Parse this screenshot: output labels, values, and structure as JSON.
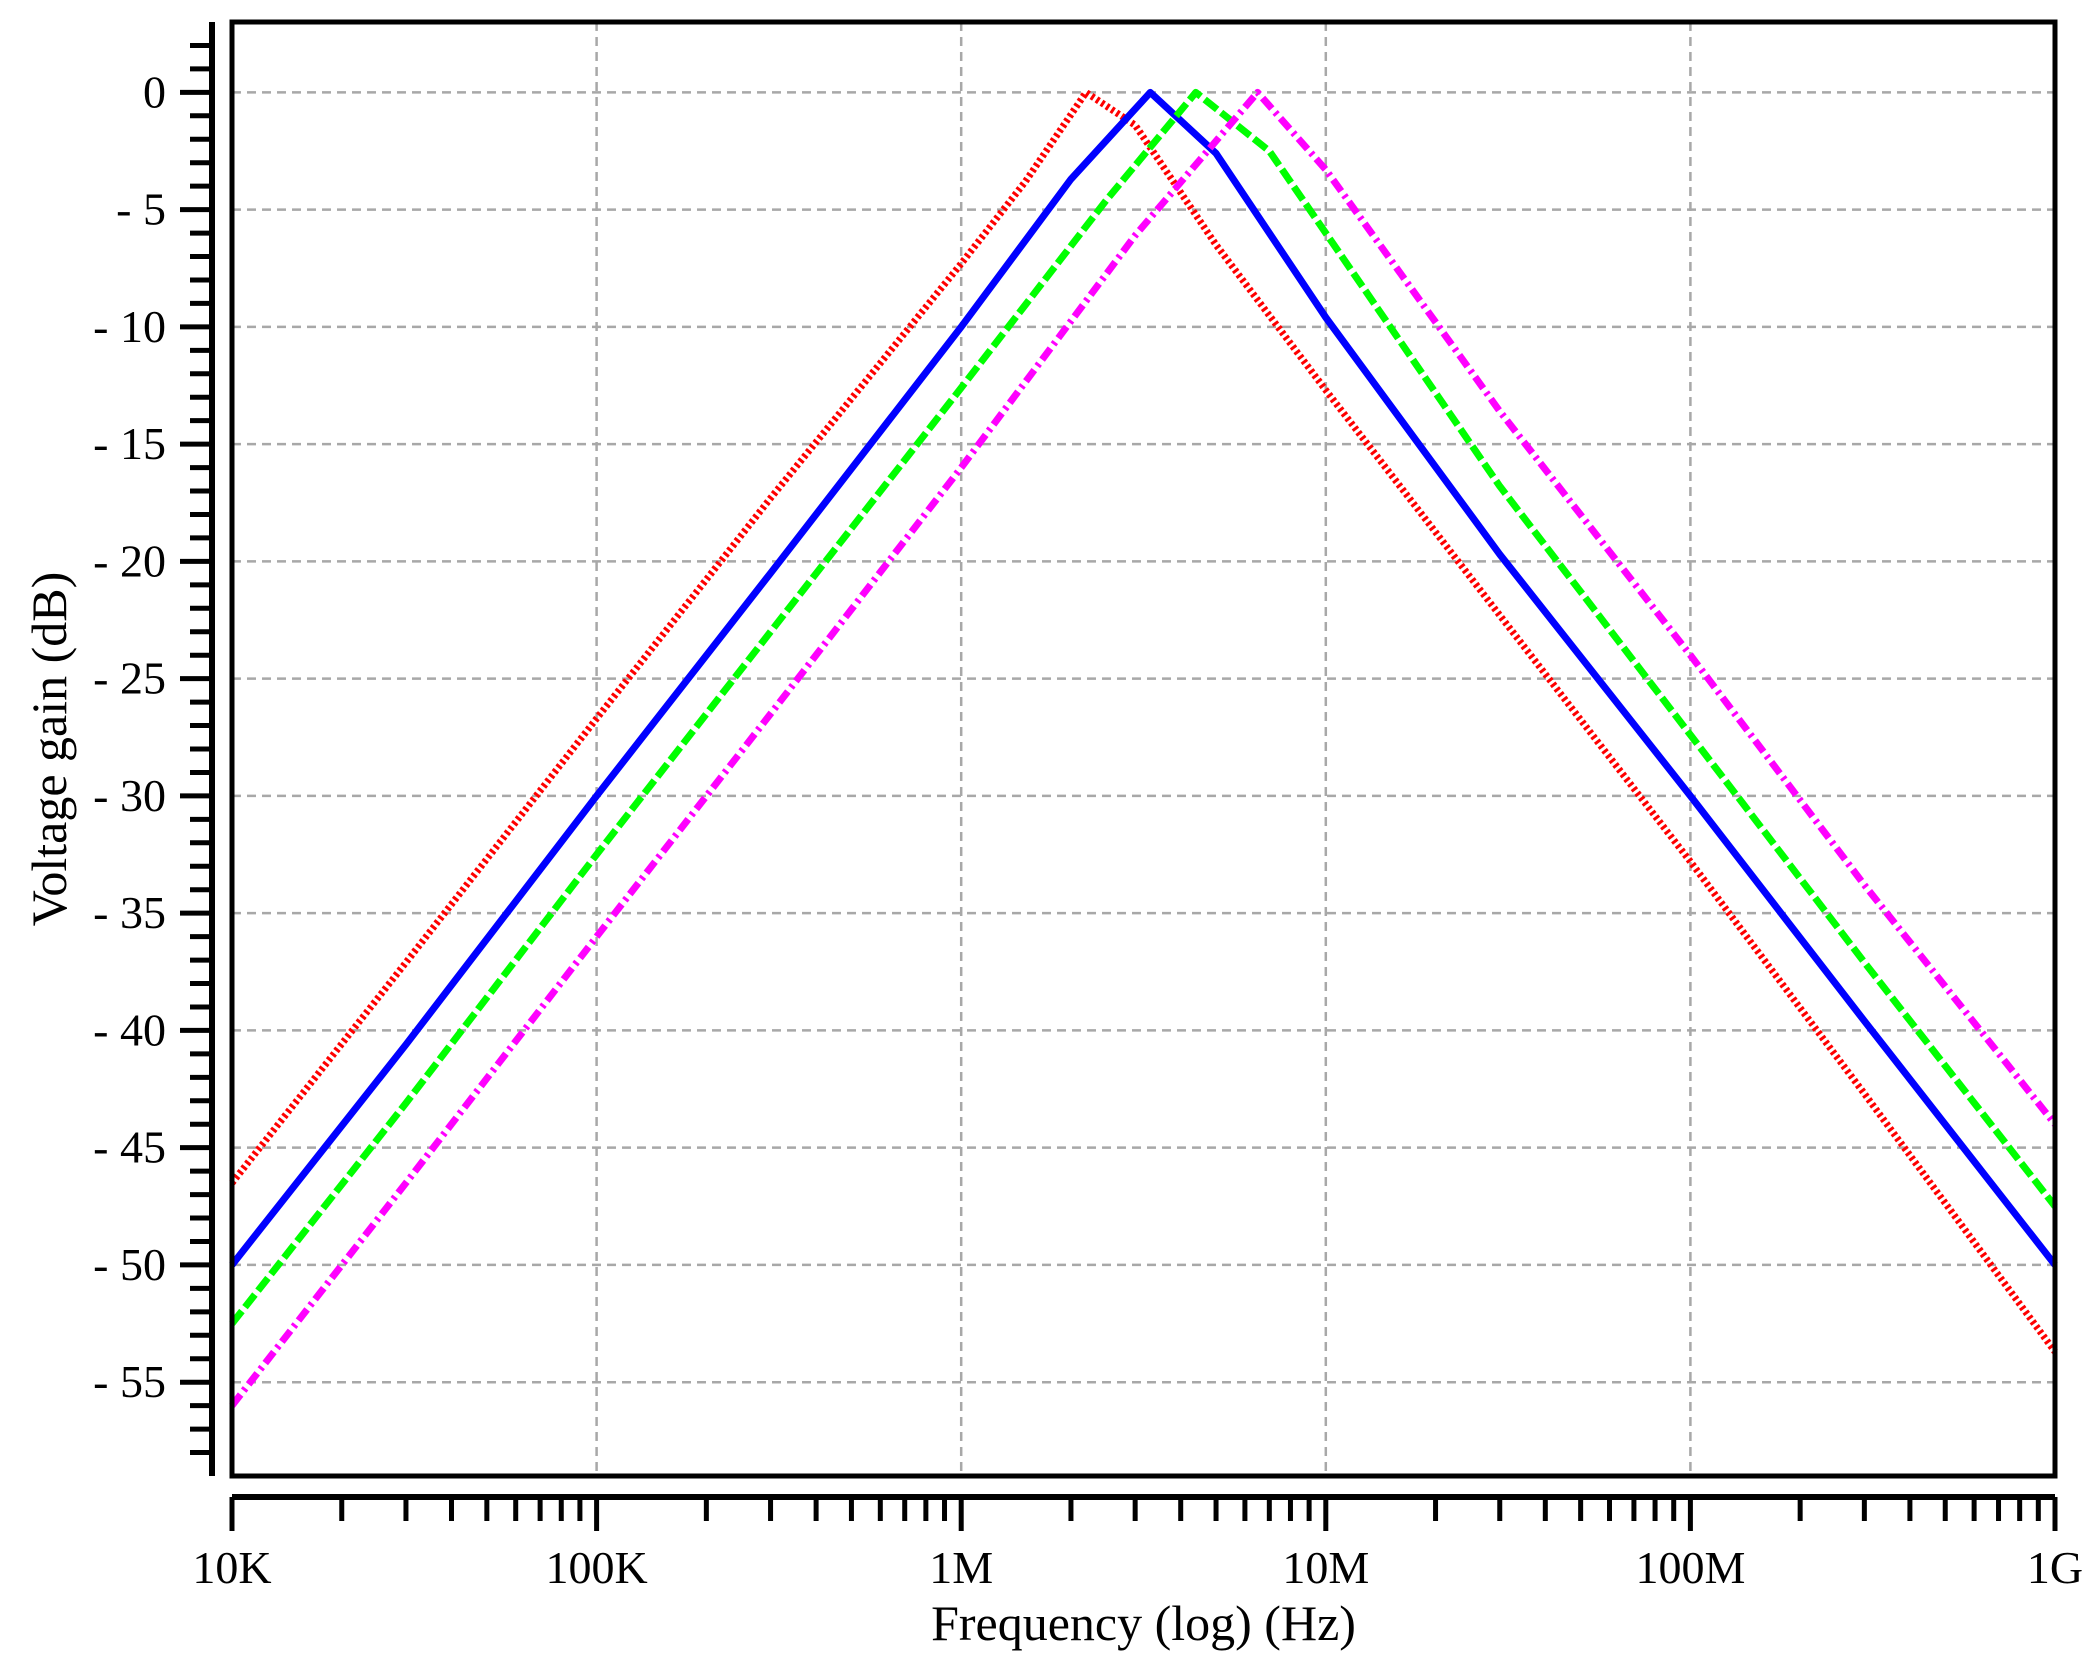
{
  "chart_data": {
    "type": "line",
    "title": "",
    "xlabel": "Frequency (log) (Hz)",
    "ylabel": "Voltage gain (dB)",
    "x_scale": "log",
    "x_unit": "Hz",
    "xlim": [
      10000,
      1000000000
    ],
    "ylim": [
      -59,
      3
    ],
    "grid": true,
    "legend": "none",
    "x_ticks": [
      {
        "value": 10000,
        "label": "10K"
      },
      {
        "value": 100000,
        "label": "100K"
      },
      {
        "value": 1000000,
        "label": "1M"
      },
      {
        "value": 10000000,
        "label": "10M"
      },
      {
        "value": 100000000,
        "label": "100M"
      },
      {
        "value": 1000000000,
        "label": "1G"
      }
    ],
    "y_ticks": [
      {
        "value": 0,
        "label": "0"
      },
      {
        "value": -5,
        "label": "- 5"
      },
      {
        "value": -10,
        "label": "- 10"
      },
      {
        "value": -15,
        "label": "- 15"
      },
      {
        "value": -20,
        "label": "- 20"
      },
      {
        "value": -25,
        "label": "- 25"
      },
      {
        "value": -30,
        "label": "- 30"
      },
      {
        "value": -35,
        "label": "- 35"
      },
      {
        "value": -40,
        "label": "- 40"
      },
      {
        "value": -45,
        "label": "- 45"
      },
      {
        "value": -50,
        "label": "- 50"
      },
      {
        "value": -55,
        "label": "- 55"
      }
    ],
    "series": [
      {
        "color": "#ff0000",
        "style": "dotted",
        "x": [
          10000,
          30000,
          100000,
          300000,
          1000000,
          1500000,
          2200000,
          3000000,
          5000000,
          10000000,
          30000000,
          100000000,
          300000000,
          1000000000
        ],
        "y": [
          -46.5,
          -37.1,
          -26.7,
          -17.3,
          -7.3,
          -3.8,
          0,
          -1.4,
          -6.5,
          -12.7,
          -22.3,
          -32.8,
          -42.7,
          -53.7
        ]
      },
      {
        "color": "#0000ff",
        "style": "solid",
        "x": [
          10000,
          30000,
          100000,
          300000,
          1000000,
          2000000,
          3300000,
          5000000,
          10000000,
          30000000,
          100000000,
          300000000,
          1000000000
        ],
        "y": [
          -50,
          -40.6,
          -30,
          -20.5,
          -10,
          -3.7,
          0,
          -2.6,
          -9.6,
          -19.7,
          -30,
          -39.6,
          -50
        ]
      },
      {
        "color": "#00ff00",
        "style": "dashed",
        "x": [
          10000,
          30000,
          100000,
          300000,
          1000000,
          2500000,
          4400000,
          7000000,
          10000000,
          30000000,
          100000000,
          300000000,
          1000000000
        ],
        "y": [
          -52.5,
          -43.1,
          -32.5,
          -23,
          -12.6,
          -4.6,
          0,
          -2.5,
          -6,
          -16.8,
          -27.4,
          -37.1,
          -47.5
        ]
      },
      {
        "color": "#ff00ff",
        "style": "dashdot",
        "x": [
          10000,
          30000,
          100000,
          300000,
          1000000,
          3000000,
          6500000,
          10000000,
          30000000,
          100000000,
          300000000,
          1000000000
        ],
        "y": [
          -56,
          -46.5,
          -36,
          -26.5,
          -16,
          -6.1,
          0,
          -3.3,
          -13.6,
          -24,
          -33.8,
          -44
        ]
      }
    ]
  }
}
